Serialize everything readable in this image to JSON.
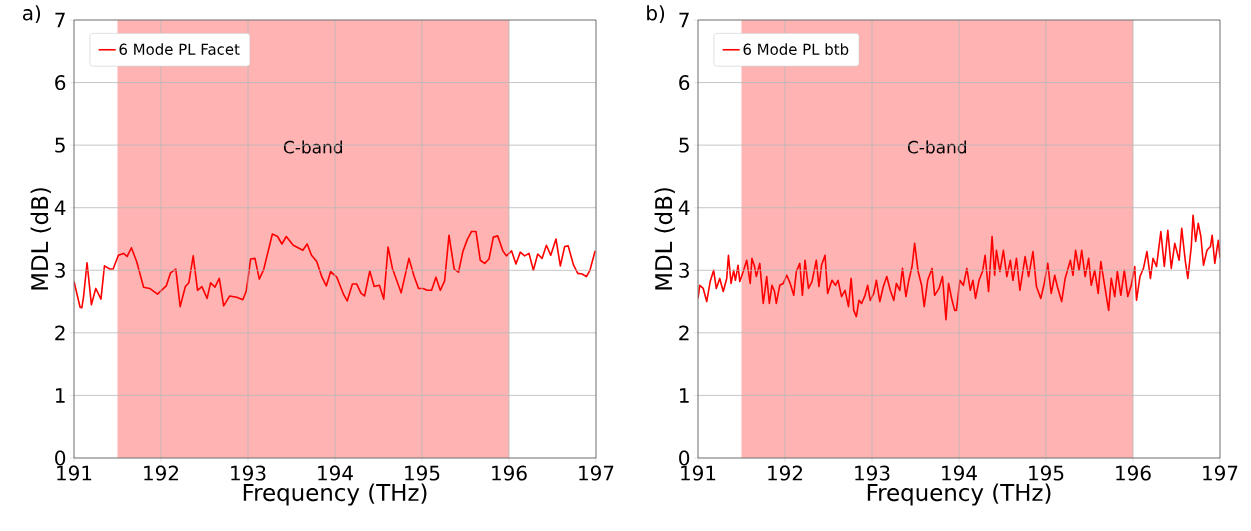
{
  "chart_data": [
    {
      "type": "line",
      "title": "a)",
      "xlabel": "Frequency (THz)",
      "ylabel": "MDL (dB)",
      "x": [
        191.0,
        191.07,
        191.09,
        191.11,
        191.15,
        191.2,
        191.25,
        191.31,
        191.35,
        191.41,
        191.45,
        191.51,
        191.57,
        191.61,
        191.66,
        191.72,
        191.8,
        191.87,
        191.96,
        192.06,
        192.11,
        192.17,
        192.22,
        192.28,
        192.32,
        192.37,
        192.42,
        192.47,
        192.53,
        192.57,
        192.62,
        192.67,
        192.72,
        192.79,
        192.87,
        192.94,
        192.98,
        193.03,
        193.08,
        193.13,
        193.18,
        193.28,
        193.34,
        193.39,
        193.44,
        193.52,
        193.63,
        193.68,
        193.73,
        193.79,
        193.85,
        193.9,
        193.95,
        194.02,
        194.04,
        194.1,
        194.14,
        194.2,
        194.25,
        194.3,
        194.34,
        194.4,
        194.45,
        194.51,
        194.56,
        194.61,
        194.66,
        194.76,
        194.85,
        194.91,
        194.96,
        195.01,
        195.06,
        195.11,
        195.16,
        195.21,
        195.26,
        195.31,
        195.37,
        195.42,
        195.47,
        195.52,
        195.57,
        195.62,
        195.67,
        195.72,
        195.77,
        195.82,
        195.87,
        195.93,
        195.97,
        196.03,
        196.08,
        196.13,
        196.18,
        196.23,
        196.28,
        196.33,
        196.38,
        196.43,
        196.48,
        196.54,
        196.59,
        196.64,
        196.68,
        196.74,
        196.79,
        196.84,
        196.89,
        196.93,
        196.99
      ],
      "series": [
        {
          "name": "6 Mode PL Facet",
          "color": "#ff0000",
          "values": [
            2.82,
            2.41,
            2.4,
            2.58,
            3.12,
            2.45,
            2.71,
            2.54,
            3.07,
            3.02,
            3.02,
            3.24,
            3.27,
            3.22,
            3.36,
            3.14,
            2.73,
            2.71,
            2.62,
            2.75,
            2.96,
            3.02,
            2.42,
            2.74,
            2.8,
            3.23,
            2.68,
            2.74,
            2.55,
            2.8,
            2.73,
            2.87,
            2.43,
            2.59,
            2.57,
            2.53,
            2.67,
            3.18,
            3.19,
            2.86,
            3.01,
            3.58,
            3.54,
            3.42,
            3.54,
            3.4,
            3.32,
            3.42,
            3.24,
            3.14,
            2.89,
            2.75,
            2.98,
            2.89,
            2.82,
            2.61,
            2.51,
            2.78,
            2.78,
            2.63,
            2.59,
            2.99,
            2.74,
            2.76,
            2.54,
            3.37,
            3.03,
            2.64,
            3.19,
            2.9,
            2.71,
            2.71,
            2.68,
            2.68,
            2.89,
            2.68,
            2.83,
            3.56,
            3.02,
            2.97,
            3.3,
            3.49,
            3.62,
            3.62,
            3.16,
            3.11,
            3.18,
            3.53,
            3.55,
            3.31,
            3.23,
            3.31,
            3.1,
            3.29,
            3.23,
            3.27,
            3.0,
            3.26,
            3.19,
            3.4,
            3.24,
            3.5,
            3.07,
            3.38,
            3.39,
            3.09,
            2.95,
            2.94,
            2.9,
            3.0,
            3.31
          ]
        }
      ],
      "xlim": [
        191,
        197
      ],
      "ylim": [
        0,
        7
      ],
      "xticks": [
        191,
        192,
        193,
        194,
        195,
        196,
        197
      ],
      "yticks": [
        0,
        1,
        2,
        3,
        4,
        5,
        6,
        7
      ],
      "grid": true,
      "legend": "top left",
      "bands": [
        {
          "axis": "x",
          "from": 191.5,
          "to": 196,
          "label": "C-band",
          "color": "#ffb3b3"
        }
      ]
    },
    {
      "type": "line",
      "title": "b)",
      "xlabel": "Frequency (THz)",
      "ylabel": "MDL (dB)",
      "x": [
        191.0,
        191.02,
        191.06,
        191.1,
        191.14,
        191.18,
        191.21,
        191.25,
        191.29,
        191.33,
        191.35,
        191.38,
        191.41,
        191.43,
        191.46,
        191.48,
        191.52,
        191.56,
        191.6,
        191.62,
        191.65,
        191.67,
        191.71,
        191.75,
        191.79,
        191.82,
        191.85,
        191.88,
        191.9,
        191.94,
        191.98,
        192.02,
        192.06,
        192.1,
        192.13,
        192.17,
        192.2,
        192.23,
        192.27,
        192.31,
        192.36,
        192.39,
        192.42,
        192.46,
        192.49,
        192.54,
        192.58,
        192.61,
        192.65,
        192.69,
        192.73,
        192.76,
        192.79,
        192.82,
        192.85,
        192.88,
        192.92,
        192.95,
        192.98,
        193.02,
        193.05,
        193.09,
        193.13,
        193.17,
        193.21,
        193.25,
        193.28,
        193.32,
        193.35,
        193.39,
        193.42,
        193.46,
        193.49,
        193.53,
        193.57,
        193.6,
        193.64,
        193.69,
        193.72,
        193.77,
        193.81,
        193.85,
        193.88,
        193.92,
        193.95,
        193.97,
        194.01,
        194.05,
        194.09,
        194.13,
        194.16,
        194.19,
        194.23,
        194.27,
        194.3,
        194.34,
        194.38,
        194.41,
        194.43,
        194.47,
        194.51,
        194.55,
        194.59,
        194.62,
        194.66,
        194.7,
        194.76,
        194.8,
        194.85,
        194.89,
        194.94,
        194.98,
        195.02,
        195.06,
        195.1,
        195.13,
        195.18,
        195.22,
        195.28,
        195.31,
        195.34,
        195.38,
        195.41,
        195.45,
        195.49,
        195.52,
        195.56,
        195.6,
        195.63,
        195.67,
        195.72,
        195.75,
        195.79,
        195.82,
        195.86,
        195.9,
        195.94,
        195.98,
        196.02,
        196.04,
        196.08,
        196.12,
        196.16,
        196.2,
        196.23,
        196.27,
        196.32,
        196.36,
        196.4,
        196.44,
        196.48,
        196.53,
        196.56,
        196.6,
        196.63,
        196.67,
        196.69,
        196.72,
        196.75,
        196.78,
        196.81,
        196.85,
        196.89,
        196.91,
        196.94,
        196.98,
        197.0
      ],
      "series": [
        {
          "name": "6 Mode PL btb",
          "color": "#ff0000",
          "values": [
            2.55,
            2.76,
            2.71,
            2.5,
            2.82,
            3.0,
            2.71,
            2.87,
            2.66,
            2.87,
            3.24,
            2.79,
            3.0,
            2.84,
            3.08,
            2.82,
            2.98,
            3.16,
            2.79,
            3.19,
            3.06,
            2.9,
            3.11,
            2.47,
            2.9,
            2.47,
            2.76,
            2.66,
            2.47,
            2.76,
            2.79,
            2.92,
            2.79,
            2.6,
            2.98,
            3.11,
            2.6,
            3.16,
            2.71,
            2.82,
            3.16,
            2.74,
            3.08,
            3.24,
            2.63,
            2.84,
            2.76,
            2.84,
            2.58,
            2.68,
            2.42,
            2.87,
            2.36,
            2.26,
            2.52,
            2.47,
            2.6,
            2.76,
            2.52,
            2.63,
            2.84,
            2.5,
            2.74,
            2.9,
            2.68,
            2.52,
            2.79,
            2.68,
            3.03,
            2.58,
            2.82,
            3.06,
            3.43,
            2.98,
            2.76,
            2.42,
            2.84,
            3.03,
            2.6,
            2.71,
            2.9,
            2.21,
            2.79,
            2.52,
            2.36,
            2.36,
            2.84,
            2.76,
            3.03,
            2.68,
            2.84,
            2.55,
            2.84,
            2.98,
            3.24,
            2.66,
            3.54,
            2.92,
            3.32,
            2.98,
            3.32,
            2.9,
            3.16,
            2.84,
            3.19,
            2.68,
            3.22,
            2.9,
            3.3,
            2.74,
            2.55,
            2.79,
            3.11,
            2.63,
            2.92,
            2.74,
            2.5,
            2.87,
            3.16,
            2.92,
            3.32,
            3.0,
            3.32,
            2.9,
            3.19,
            2.76,
            3.0,
            2.63,
            3.14,
            2.79,
            2.36,
            2.87,
            2.58,
            2.98,
            2.6,
            3.0,
            2.58,
            2.76,
            3.06,
            2.52,
            2.9,
            3.03,
            3.3,
            2.87,
            3.19,
            3.06,
            3.62,
            3.06,
            3.64,
            3.03,
            3.43,
            3.16,
            3.67,
            3.16,
            2.87,
            3.38,
            3.88,
            3.46,
            3.75,
            3.54,
            3.08,
            3.32,
            3.38,
            3.56,
            3.11,
            3.48,
            3.2
          ]
        }
      ],
      "xlim": [
        191,
        197
      ],
      "ylim": [
        0,
        7
      ],
      "xticks": [
        191,
        192,
        193,
        194,
        195,
        196,
        197
      ],
      "yticks": [
        0,
        1,
        2,
        3,
        4,
        5,
        6,
        7
      ],
      "grid": true,
      "legend": "top left",
      "bands": [
        {
          "axis": "x",
          "from": 191.5,
          "to": 196,
          "label": "C-band",
          "color": "#ffb3b3"
        }
      ]
    }
  ]
}
